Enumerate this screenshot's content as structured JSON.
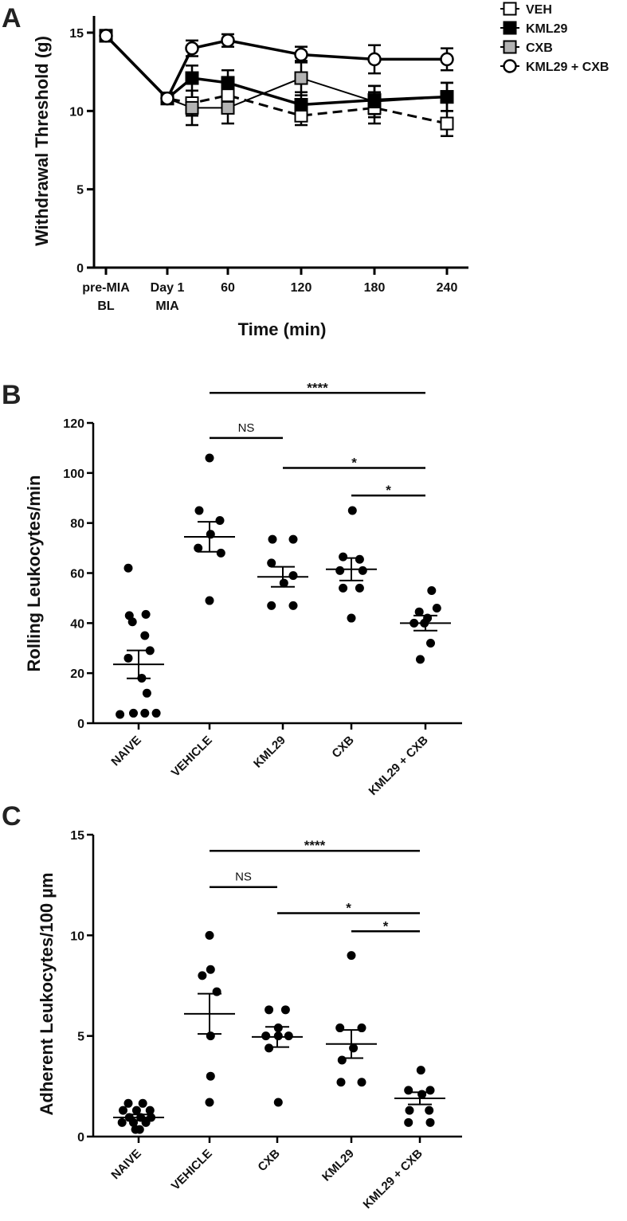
{
  "colors": {
    "ink": "#000000",
    "grey_fill": "#b3b3b3",
    "white": "#ffffff"
  },
  "chart_data": [
    {
      "type": "line",
      "panel": "A",
      "ylabel": "Withdrawal Threshold (g)",
      "xlabel": "Time (min)",
      "ylim": [
        0,
        15
      ],
      "yticks": [
        0,
        5,
        10,
        15
      ],
      "x_ticks": [
        {
          "x": "pre-MIA BL",
          "line1": "pre-MIA",
          "line2": "BL"
        },
        {
          "x": "Day 1 MIA",
          "line1": "Day 1",
          "line2": "MIA"
        },
        {
          "x": "60",
          "line1": "60",
          "line2": ""
        },
        {
          "x": "120",
          "line1": "120",
          "line2": ""
        },
        {
          "x": "180",
          "line1": "180",
          "line2": ""
        },
        {
          "x": "240",
          "line1": "240",
          "line2": ""
        }
      ],
      "legend_position": "top-right",
      "series": [
        {
          "name": "VEH",
          "marker": "square-white",
          "dash": true,
          "stroke_width": 3,
          "points": [
            {
              "x": "pre-MIA BL",
              "y": 14.8,
              "err": 0
            },
            {
              "x": "Day 1 MIA",
              "y": 10.8,
              "err": 0
            },
            {
              "x": "30",
              "y": 10.5,
              "err": 0.8
            },
            {
              "x": "60",
              "y": 11.0,
              "err": 0.8
            },
            {
              "x": "120",
              "y": 9.7,
              "err": 0.6
            },
            {
              "x": "180",
              "y": 10.2,
              "err": 1.0
            },
            {
              "x": "240",
              "y": 9.2,
              "err": 0.8
            }
          ]
        },
        {
          "name": "KML29",
          "marker": "square-black",
          "dash": false,
          "stroke_width": 3.5,
          "points": [
            {
              "x": "pre-MIA BL",
              "y": 14.8,
              "err": 0
            },
            {
              "x": "Day 1 MIA",
              "y": 10.8,
              "err": 0
            },
            {
              "x": "30",
              "y": 12.1,
              "err": 0.8
            },
            {
              "x": "60",
              "y": 11.8,
              "err": 0.8
            },
            {
              "x": "120",
              "y": 10.4,
              "err": 0.8
            },
            {
              "x": "180",
              "y": 10.7,
              "err": 0.9
            },
            {
              "x": "240",
              "y": 10.9,
              "err": 0.9
            }
          ]
        },
        {
          "name": "CXB",
          "marker": "square-grey",
          "dash": false,
          "stroke_width": 2,
          "points": [
            {
              "x": "pre-MIA BL",
              "y": 14.8,
              "err": 0
            },
            {
              "x": "Day 1 MIA",
              "y": 10.8,
              "err": 0
            },
            {
              "x": "30",
              "y": 10.2,
              "err": 1.1
            },
            {
              "x": "60",
              "y": 10.2,
              "err": 1.0
            },
            {
              "x": "120",
              "y": 12.1,
              "err": 1.1
            },
            {
              "x": "180",
              "y": 10.6,
              "err": 1.0
            },
            {
              "x": "240",
              "y": 10.9,
              "err": 0.9
            }
          ]
        },
        {
          "name": "KML29 + CXB",
          "marker": "circle-white",
          "dash": false,
          "stroke_width": 3.5,
          "points": [
            {
              "x": "pre-MIA BL",
              "y": 14.8,
              "err": 0
            },
            {
              "x": "Day 1 MIA",
              "y": 10.8,
              "err": 0
            },
            {
              "x": "30",
              "y": 14.0,
              "err": 0.5
            },
            {
              "x": "60",
              "y": 14.5,
              "err": 0.4
            },
            {
              "x": "120",
              "y": 13.6,
              "err": 0.5
            },
            {
              "x": "180",
              "y": 13.3,
              "err": 0.9
            },
            {
              "x": "240",
              "y": 13.3,
              "err": 0.7
            }
          ]
        }
      ]
    },
    {
      "type": "scatter",
      "panel": "B",
      "ylabel": "Rolling Leukocytes/min",
      "ylim": [
        0,
        120
      ],
      "yticks": [
        0,
        20,
        40,
        60,
        80,
        100,
        120
      ],
      "categories": [
        "NAIVE",
        "VEHICLE",
        "KML29",
        "CXB",
        "KML29 + CXB"
      ],
      "groups": [
        {
          "name": "NAIVE",
          "mean": 23.5,
          "sem": 5.6,
          "points": [
            [
              -0.5,
              62
            ],
            [
              -0.3,
              40.5
            ],
            [
              0.35,
              43.5
            ],
            [
              -0.45,
              43
            ],
            [
              0.3,
              35
            ],
            [
              0.55,
              29
            ],
            [
              -0.5,
              26
            ],
            [
              0.15,
              18
            ],
            [
              0.4,
              12
            ],
            [
              -0.25,
              4
            ],
            [
              0.3,
              4
            ],
            [
              -0.9,
              3.5
            ],
            [
              0.85,
              4
            ]
          ]
        },
        {
          "name": "VEHICLE",
          "mean": 74.5,
          "sem": 6.0,
          "points": [
            [
              0,
              106
            ],
            [
              -0.5,
              85
            ],
            [
              0.5,
              81
            ],
            [
              0.05,
              75.5
            ],
            [
              -0.55,
              70
            ],
            [
              0.55,
              68
            ],
            [
              0,
              49
            ]
          ]
        },
        {
          "name": "KML29",
          "mean": 58.5,
          "sem": 4.0,
          "points": [
            [
              -0.5,
              73.5
            ],
            [
              0.5,
              73.5
            ],
            [
              -0.55,
              64
            ],
            [
              0.5,
              59
            ],
            [
              0.05,
              56
            ],
            [
              -0.55,
              47
            ],
            [
              0.5,
              47
            ]
          ]
        },
        {
          "name": "CXB",
          "mean": 61.5,
          "sem": 4.5,
          "points": [
            [
              0.05,
              85
            ],
            [
              -0.4,
              66.5
            ],
            [
              0.4,
              65.5
            ],
            [
              -0.55,
              61
            ],
            [
              0.55,
              61
            ],
            [
              -0.4,
              54
            ],
            [
              0.4,
              54
            ],
            [
              0,
              42
            ]
          ]
        },
        {
          "name": "KML29 + CXB",
          "mean": 40,
          "sem": 3.0,
          "points": [
            [
              0.3,
              53
            ],
            [
              -0.3,
              44.5
            ],
            [
              0.55,
              46
            ],
            [
              0.1,
              42
            ],
            [
              -0.55,
              40
            ],
            [
              -0.05,
              40
            ],
            [
              0.25,
              32
            ],
            [
              -0.25,
              25.5
            ]
          ]
        }
      ],
      "significance": [
        {
          "from": "VEHICLE",
          "to": "KML29 + CXB",
          "label": "****",
          "level": 132
        },
        {
          "from": "VEHICLE",
          "to": "KML29",
          "label": "NS",
          "level": 114
        },
        {
          "from": "KML29",
          "to": "KML29 + CXB",
          "label": "*",
          "level": 102
        },
        {
          "from": "CXB",
          "to": "KML29 + CXB",
          "label": "*",
          "level": 91
        }
      ]
    },
    {
      "type": "scatter",
      "panel": "C",
      "ylabel": "Adherent Leukocytes/100 µm",
      "ylim": [
        0,
        15
      ],
      "yticks": [
        0,
        5,
        10,
        15
      ],
      "categories": [
        "NAIVE",
        "VEHICLE",
        "CXB",
        "KML29",
        "KML29 + CXB"
      ],
      "groups": [
        {
          "name": "NAIVE",
          "mean": 0.95,
          "sem": 0.15,
          "points": [
            [
              -0.5,
              1.65
            ],
            [
              0.2,
              1.65
            ],
            [
              -0.75,
              1.3
            ],
            [
              0.55,
              1.3
            ],
            [
              -0.1,
              1.3
            ],
            [
              -0.45,
              0.95
            ],
            [
              0.1,
              0.95
            ],
            [
              0.6,
              0.95
            ],
            [
              -0.8,
              0.7
            ],
            [
              -0.25,
              0.7
            ],
            [
              0.35,
              0.7
            ],
            [
              -0.15,
              0.35
            ],
            [
              0.05,
              0.35
            ]
          ]
        },
        {
          "name": "VEHICLE",
          "mean": 6.1,
          "sem": 1.0,
          "points": [
            [
              0,
              10
            ],
            [
              0.05,
              8.3
            ],
            [
              -0.35,
              8.0
            ],
            [
              0.35,
              7.2
            ],
            [
              0.05,
              5.0
            ],
            [
              0.05,
              3.0
            ],
            [
              0,
              1.7
            ]
          ]
        },
        {
          "name": "CXB",
          "mean": 4.95,
          "sem": 0.5,
          "points": [
            [
              -0.4,
              6.3
            ],
            [
              0.4,
              6.3
            ],
            [
              0.05,
              5.4
            ],
            [
              -0.55,
              5.0
            ],
            [
              0.05,
              5.0
            ],
            [
              0.55,
              5.0
            ],
            [
              -0.4,
              4.4
            ],
            [
              0.05,
              1.7
            ]
          ]
        },
        {
          "name": "KML29",
          "mean": 4.6,
          "sem": 0.7,
          "points": [
            [
              0,
              9.0
            ],
            [
              -0.55,
              5.4
            ],
            [
              0.5,
              5.4
            ],
            [
              0.1,
              4.4
            ],
            [
              -0.45,
              3.8
            ],
            [
              -0.5,
              2.7
            ],
            [
              0.5,
              2.7
            ]
          ]
        },
        {
          "name": "KML29 + CXB",
          "mean": 1.9,
          "sem": 0.3,
          "points": [
            [
              0.05,
              3.3
            ],
            [
              -0.55,
              2.3
            ],
            [
              0.5,
              2.3
            ],
            [
              0.1,
              2.1
            ],
            [
              -0.5,
              1.3
            ],
            [
              0.45,
              1.3
            ],
            [
              -0.55,
              0.7
            ],
            [
              0.5,
              0.7
            ]
          ]
        }
      ],
      "significance": [
        {
          "from": "VEHICLE",
          "to": "KML29 + CXB",
          "label": "****",
          "level": 14.2
        },
        {
          "from": "VEHICLE",
          "to": "CXB",
          "label": "NS",
          "level": 12.4
        },
        {
          "from": "CXB",
          "to": "KML29 + CXB",
          "label": "*",
          "level": 11.1
        },
        {
          "from": "KML29",
          "to": "KML29 + CXB",
          "label": "*",
          "level": 10.2
        }
      ]
    }
  ],
  "panels": {
    "a": "A",
    "b": "B",
    "c": "C"
  }
}
